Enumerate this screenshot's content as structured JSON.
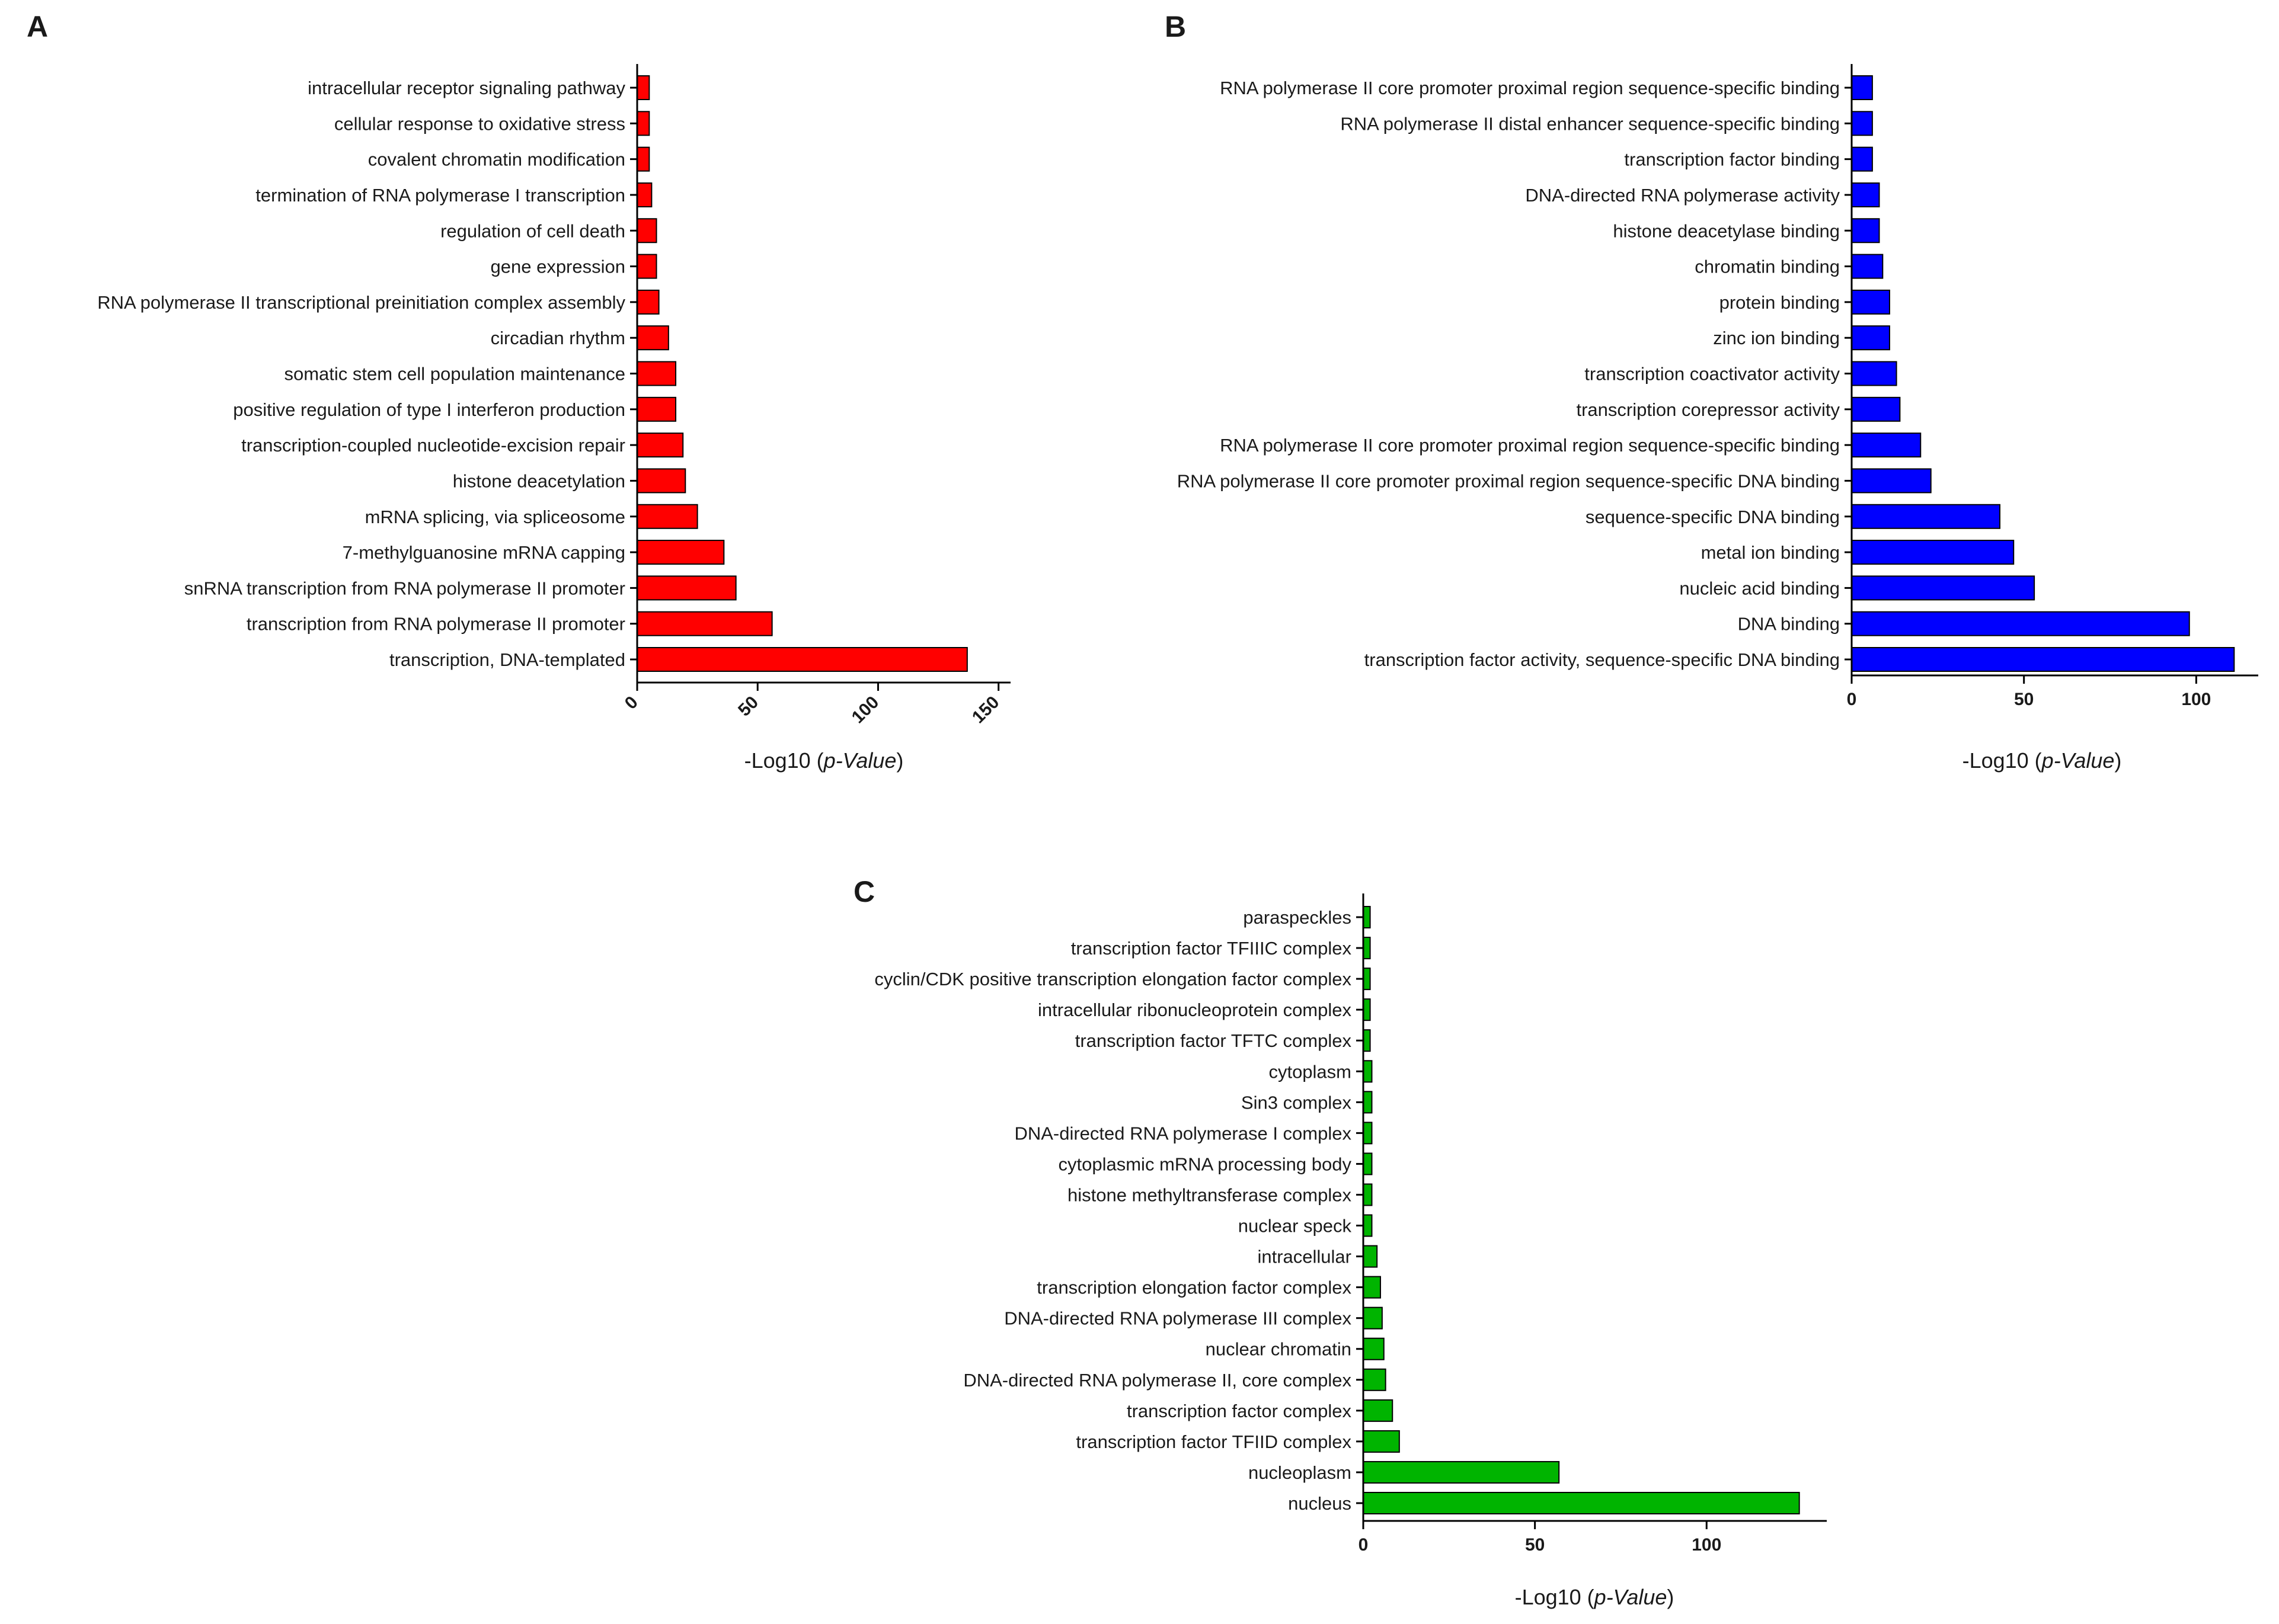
{
  "chart_data": [
    {
      "panel": "A",
      "type": "bar",
      "orientation": "horizontal",
      "color": "#ff0000",
      "xlabel_prefix": "-Log10 (",
      "xlabel_italic": "p-Value",
      "xlabel_suffix": ")",
      "xlim": [
        0,
        155
      ],
      "xticks": [
        0,
        50,
        100,
        150
      ],
      "categories": [
        "intracellular receptor signaling pathway",
        "cellular response to oxidative stress",
        "covalent chromatin modification",
        "termination of RNA polymerase I transcription",
        "regulation of cell death",
        "gene expression",
        "RNA polymerase II transcriptional preinitiation complex assembly",
        "circadian rhythm",
        "somatic stem cell population maintenance",
        "positive regulation of type I interferon production",
        "transcription-coupled nucleotide-excision repair",
        "histone deacetylation",
        "mRNA splicing, via spliceosome",
        "7-methylguanosine mRNA capping",
        "snRNA transcription from RNA polymerase II promoter",
        "transcription from RNA polymerase II promoter",
        "transcription, DNA-templated"
      ],
      "values": [
        5,
        5,
        5,
        6,
        8,
        8,
        9,
        13,
        16,
        16,
        19,
        20,
        25,
        36,
        41,
        56,
        137
      ]
    },
    {
      "panel": "B",
      "type": "bar",
      "orientation": "horizontal",
      "color": "#0000ff",
      "xlabel_prefix": "-Log10 (",
      "xlabel_italic": "p-Value",
      "xlabel_suffix": ")",
      "xlim": [
        0,
        118
      ],
      "xticks": [
        0,
        50,
        100
      ],
      "categories": [
        "RNA polymerase II core promoter proximal region sequence-specific binding",
        "RNA polymerase II distal enhancer sequence-specific binding",
        "transcription factor binding",
        "DNA-directed RNA polymerase activity",
        "histone deacetylase binding",
        "chromatin binding",
        "protein binding",
        "zinc ion binding",
        "transcription coactivator activity",
        "transcription corepressor activity",
        "RNA polymerase II core promoter proximal region sequence-specific binding",
        "RNA polymerase II core promoter proximal region sequence-specific DNA binding",
        "sequence-specific DNA binding",
        "metal ion binding",
        "nucleic acid binding",
        "DNA binding",
        "transcription factor activity, sequence-specific DNA binding"
      ],
      "values": [
        6,
        6,
        6,
        8,
        8,
        9,
        11,
        11,
        13,
        14,
        20,
        23,
        43,
        47,
        53,
        98,
        111
      ]
    },
    {
      "panel": "C",
      "type": "bar",
      "orientation": "horizontal",
      "color": "#00b400",
      "xlabel_prefix": "-Log10 (",
      "xlabel_italic": "p-Value",
      "xlabel_suffix": ")",
      "xlim": [
        0,
        135
      ],
      "xticks": [
        0,
        50,
        100
      ],
      "categories": [
        "paraspeckles",
        "transcription factor TFIIIC complex",
        "cyclin/CDK positive transcription elongation factor complex",
        "intracellular ribonucleoprotein complex",
        "transcription factor TFTC complex",
        "cytoplasm",
        "Sin3 complex",
        "DNA-directed RNA polymerase I complex",
        "cytoplasmic mRNA processing body",
        "histone methyltransferase complex",
        "nuclear speck",
        "intracellular",
        "transcription elongation factor complex",
        "DNA-directed RNA polymerase III complex",
        "nuclear chromatin",
        "DNA-directed RNA polymerase II, core complex",
        "transcription factor complex",
        "transcription factor TFIID complex",
        "nucleoplasm",
        "nucleus"
      ],
      "values": [
        2,
        2,
        2,
        2,
        2,
        2.5,
        2.5,
        2.5,
        2.5,
        2.5,
        2.5,
        4,
        5,
        5.5,
        6,
        6.5,
        8.5,
        10.5,
        57,
        127
      ]
    }
  ]
}
